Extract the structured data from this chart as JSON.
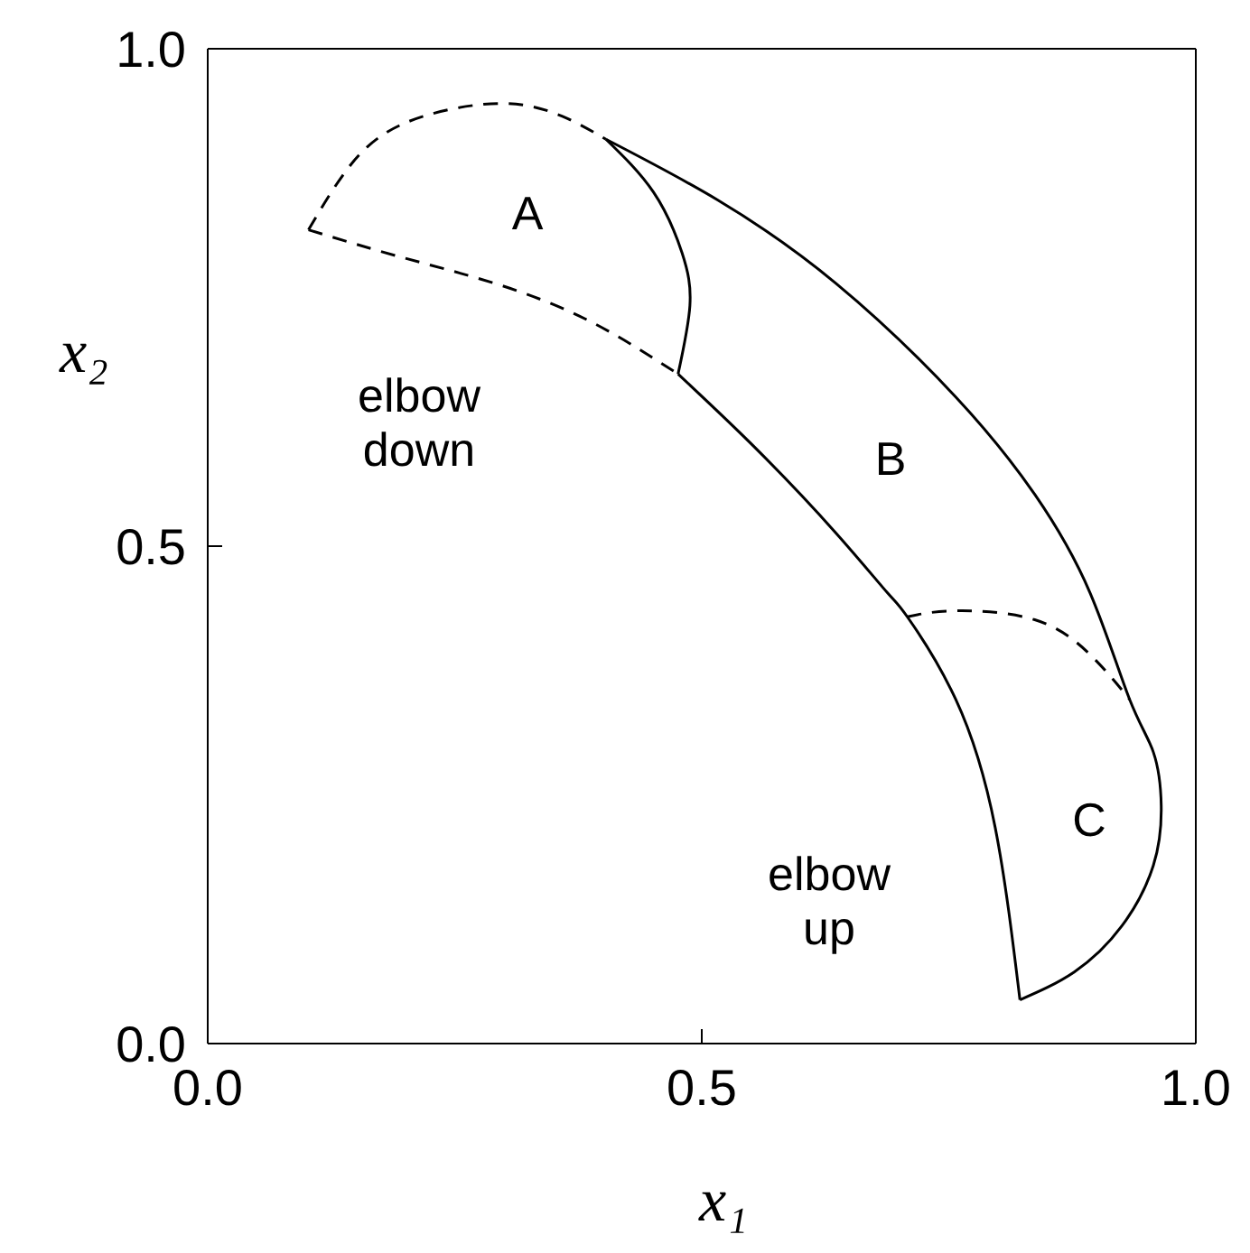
{
  "chart_data": {
    "type": "line",
    "xlabel": "x₁",
    "ylabel": "x₂",
    "xlim": [
      0,
      1
    ],
    "ylim": [
      0,
      1
    ],
    "xticks": [
      {
        "value": 0,
        "label": "0.0"
      },
      {
        "value": 0.5,
        "label": "0.5"
      },
      {
        "value": 1,
        "label": "1.0"
      }
    ],
    "yticks": [
      {
        "value": 0,
        "label": "0.0"
      },
      {
        "value": 0.5,
        "label": "0.5"
      },
      {
        "value": 1,
        "label": "1.0"
      }
    ],
    "legend": false,
    "marker": "none",
    "series": [
      {
        "color": "#000000",
        "line_style": "dashed",
        "x": [
          0.102,
          0.154,
          0.218,
          0.299,
          0.359,
          0.403
        ],
        "values": [
          0.818,
          0.894,
          0.932,
          0.945,
          0.932,
          0.909
        ]
      },
      {
        "color": "#000000",
        "line_style": "dashed",
        "x": [
          0.102,
          0.194,
          0.291,
          0.387,
          0.476
        ],
        "values": [
          0.818,
          0.791,
          0.764,
          0.726,
          0.673
        ]
      },
      {
        "color": "#000000",
        "line_style": "solid",
        "x": [
          0.403,
          0.451,
          0.48,
          0.488,
          0.476
        ],
        "values": [
          0.909,
          0.856,
          0.795,
          0.742,
          0.673
        ]
      },
      {
        "color": "#000000",
        "line_style": "solid",
        "x": [
          0.403,
          0.516,
          0.636,
          0.757,
          0.837,
          0.893,
          0.933,
          0.957,
          0.965,
          0.957,
          0.925,
          0.877,
          0.822
        ],
        "values": [
          0.909,
          0.848,
          0.764,
          0.65,
          0.552,
          0.453,
          0.346,
          0.293,
          0.239,
          0.179,
          0.118,
          0.072,
          0.044
        ]
      },
      {
        "color": "#000000",
        "line_style": "solid",
        "x": [
          0.476,
          0.556,
          0.636,
          0.688,
          0.708,
          0.757,
          0.797,
          0.822
        ],
        "values": [
          0.673,
          0.597,
          0.513,
          0.453,
          0.429,
          0.346,
          0.217,
          0.044
        ]
      },
      {
        "color": "#000000",
        "line_style": "dashed",
        "x": [
          0.708,
          0.757,
          0.837,
          0.893,
          0.933
        ],
        "values": [
          0.429,
          0.435,
          0.426,
          0.391,
          0.346
        ]
      }
    ],
    "annotations": [
      "A",
      "B",
      "C",
      "elbow down",
      "elbow up"
    ]
  }
}
